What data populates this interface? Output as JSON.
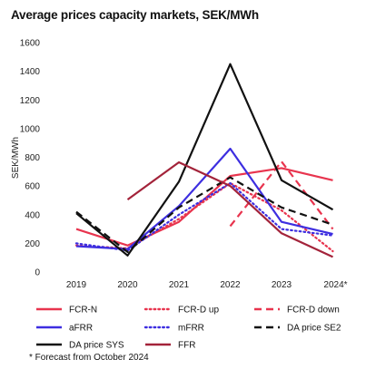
{
  "chart_data": {
    "type": "line",
    "title": "Average prices capacity markets, SEK/MWh",
    "xlabel": "",
    "ylabel": "SEK/MWh",
    "categories": [
      "2019",
      "2020",
      "2021",
      "2022",
      "2023",
      "2024*"
    ],
    "ylim": [
      0,
      1600
    ],
    "yticks": [
      0,
      200,
      400,
      600,
      800,
      1000,
      1200,
      1400,
      1600
    ],
    "grid": false,
    "legend_position": "bottom",
    "series": [
      {
        "name": "FCR-N",
        "color": "#e8344e",
        "dash": "solid",
        "values": [
          300,
          185,
          350,
          670,
          725,
          640
        ]
      },
      {
        "name": "FCR-D up",
        "color": "#e8344e",
        "dash": "dotted",
        "values": [
          185,
          165,
          370,
          620,
          430,
          145
        ]
      },
      {
        "name": "FCR-D down",
        "color": "#e8344e",
        "dash": "dashed",
        "values": [
          null,
          null,
          null,
          320,
          770,
          300
        ]
      },
      {
        "name": "aFRR",
        "color": "#3d2ee0",
        "dash": "solid",
        "values": [
          180,
          160,
          460,
          860,
          350,
          265
        ]
      },
      {
        "name": "mFRR",
        "color": "#3d2ee0",
        "dash": "dotted",
        "values": [
          200,
          150,
          400,
          620,
          300,
          255
        ]
      },
      {
        "name": "DA price SE2",
        "color": "#111111",
        "dash": "dashed",
        "values": [
          420,
          140,
          450,
          660,
          450,
          330
        ]
      },
      {
        "name": "DA price SYS",
        "color": "#111111",
        "dash": "solid",
        "values": [
          410,
          115,
          630,
          1450,
          640,
          435
        ]
      },
      {
        "name": "FFR",
        "color": "#a3233a",
        "dash": "solid",
        "values": [
          null,
          505,
          765,
          600,
          270,
          105
        ]
      }
    ],
    "footnote": "* Forecast from October 2024"
  }
}
